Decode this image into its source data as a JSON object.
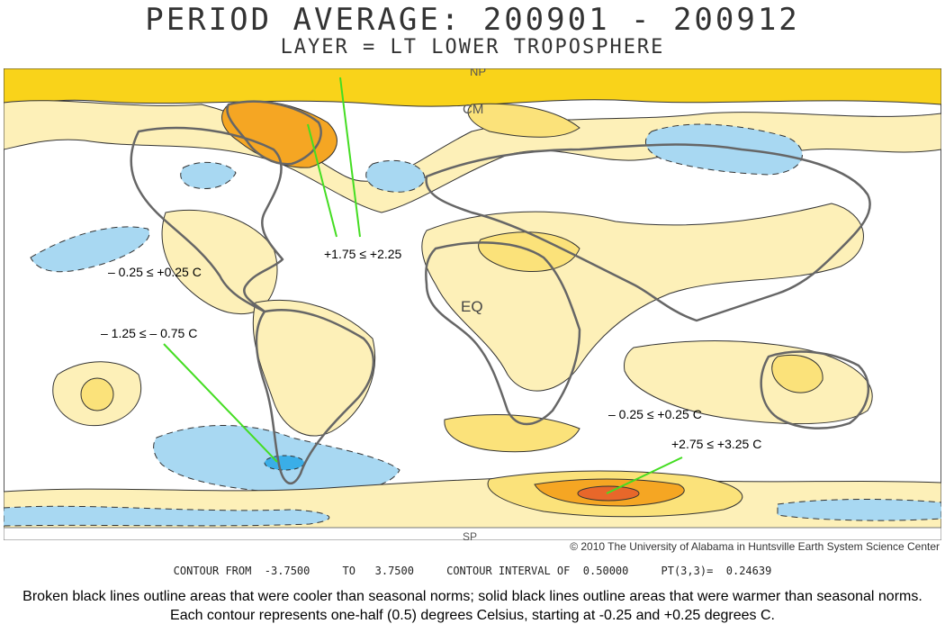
{
  "title": "PERIOD AVERAGE: 200901 - 200912",
  "subtitle": "LAYER = LT LOWER TROPOSPHERE",
  "map_labels": {
    "np": "NP",
    "cm": "CM",
    "eq": "EQ",
    "sp": "SP"
  },
  "annotations": {
    "north_atlantic": "+1.75 ≤ +2.25",
    "pacific_neutral": "– 0.25 ≤ +0.25 C",
    "south_pacific_cool": "– 1.25  ≤  – 0.75 C",
    "indian_ocean_neutral": "– 0.25 ≤ +0.25 C",
    "antarctic_warm": "+2.75 ≤ +3.25 C"
  },
  "credit": "© 2010 The University of Alabama in Huntsville Earth System Science Center",
  "contour_info": "CONTOUR FROM  -3.7500     TO   3.7500     CONTOUR INTERVAL OF  0.50000     PT(3,3)=  0.24639",
  "caption": "Broken black lines outline areas that were cooler than seasonal norms; solid black lines outline areas that were warmer than seasonal norms. Each contour represents one-half (0.5) degrees Celsius, starting at -0.25 and +0.25 degrees C.",
  "colors": {
    "neutral": "#ffffff",
    "warm_1": "#fdf0b8",
    "warm_2": "#fbe27a",
    "warm_3": "#f9d31a",
    "warm_4": "#f5a623",
    "warm_5": "#e8672a",
    "cool_1": "#a8d8f2",
    "cool_2": "#3aaee8",
    "land_outline": "#666666",
    "pointer": "#44dd22"
  }
}
